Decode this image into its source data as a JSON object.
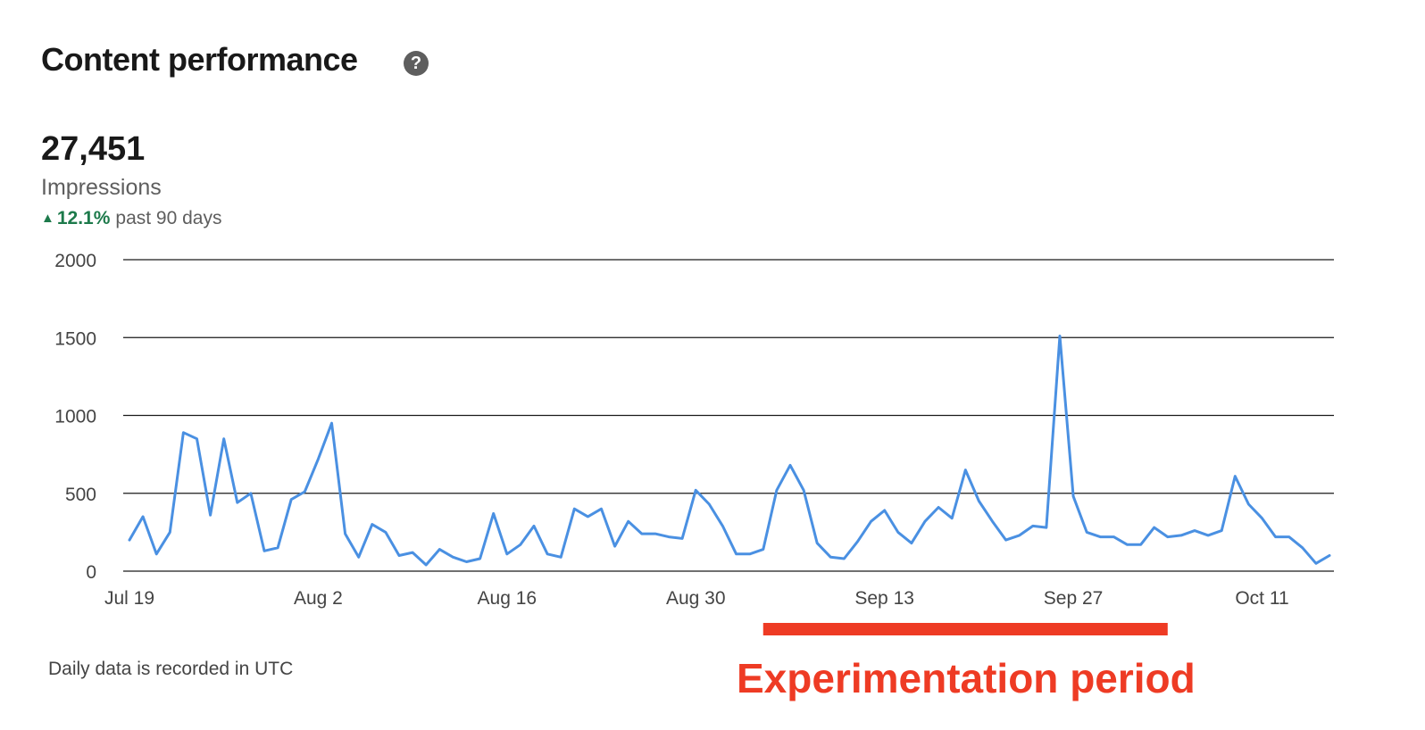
{
  "header": {
    "title": "Content performance",
    "help_icon": "?"
  },
  "summary": {
    "value": "27,451",
    "label": "Impressions",
    "change": "12.1%",
    "period": "past 90 days",
    "trend_icon": "▲"
  },
  "footer": {
    "note": "Daily data is recorded in UTC"
  },
  "annotation": {
    "label": "Experimentation period",
    "start": "2021-09-04",
    "end": "2021-10-04",
    "color": "#ee3b24"
  },
  "colors": {
    "line": "#4a90e2",
    "gridline": "#1a1a1a",
    "trend_up": "#1d7a4b",
    "annotation": "#ee3b24"
  },
  "chart_data": {
    "type": "line",
    "title": "",
    "xlabel": "",
    "ylabel": "",
    "ylim": [
      0,
      2000
    ],
    "yticks": [
      0,
      500,
      1000,
      1500,
      2000
    ],
    "x_tick_labels": [
      {
        "label": "Jul 19",
        "date": "2021-07-19"
      },
      {
        "label": "Aug 2",
        "date": "2021-08-02"
      },
      {
        "label": "Aug 16",
        "date": "2021-08-16"
      },
      {
        "label": "Aug 30",
        "date": "2021-08-30"
      },
      {
        "label": "Sep 13",
        "date": "2021-09-13"
      },
      {
        "label": "Sep 27",
        "date": "2021-09-27"
      },
      {
        "label": "Oct 11",
        "date": "2021-10-11"
      }
    ],
    "grid": true,
    "series": [
      {
        "name": "",
        "points": [
          [
            "2021-07-19",
            200
          ],
          [
            "2021-07-20",
            350
          ],
          [
            "2021-07-21",
            110
          ],
          [
            "2021-07-22",
            250
          ],
          [
            "2021-07-23",
            890
          ],
          [
            "2021-07-24",
            850
          ],
          [
            "2021-07-25",
            360
          ],
          [
            "2021-07-26",
            850
          ],
          [
            "2021-07-27",
            440
          ],
          [
            "2021-07-28",
            500
          ],
          [
            "2021-07-29",
            130
          ],
          [
            "2021-07-30",
            150
          ],
          [
            "2021-07-31",
            460
          ],
          [
            "2021-08-01",
            510
          ],
          [
            "2021-08-02",
            720
          ],
          [
            "2021-08-03",
            950
          ],
          [
            "2021-08-04",
            240
          ],
          [
            "2021-08-05",
            90
          ],
          [
            "2021-08-06",
            300
          ],
          [
            "2021-08-07",
            250
          ],
          [
            "2021-08-08",
            100
          ],
          [
            "2021-08-09",
            120
          ],
          [
            "2021-08-10",
            40
          ],
          [
            "2021-08-11",
            140
          ],
          [
            "2021-08-12",
            90
          ],
          [
            "2021-08-13",
            60
          ],
          [
            "2021-08-14",
            80
          ],
          [
            "2021-08-15",
            370
          ],
          [
            "2021-08-16",
            110
          ],
          [
            "2021-08-17",
            170
          ],
          [
            "2021-08-18",
            290
          ],
          [
            "2021-08-19",
            110
          ],
          [
            "2021-08-20",
            90
          ],
          [
            "2021-08-21",
            400
          ],
          [
            "2021-08-22",
            350
          ],
          [
            "2021-08-23",
            400
          ],
          [
            "2021-08-24",
            160
          ],
          [
            "2021-08-25",
            320
          ],
          [
            "2021-08-26",
            240
          ],
          [
            "2021-08-27",
            240
          ],
          [
            "2021-08-28",
            220
          ],
          [
            "2021-08-29",
            210
          ],
          [
            "2021-08-30",
            520
          ],
          [
            "2021-08-31",
            430
          ],
          [
            "2021-09-01",
            290
          ],
          [
            "2021-09-02",
            110
          ],
          [
            "2021-09-03",
            110
          ],
          [
            "2021-09-04",
            140
          ],
          [
            "2021-09-05",
            520
          ],
          [
            "2021-09-06",
            680
          ],
          [
            "2021-09-07",
            520
          ],
          [
            "2021-09-08",
            180
          ],
          [
            "2021-09-09",
            90
          ],
          [
            "2021-09-10",
            80
          ],
          [
            "2021-09-11",
            190
          ],
          [
            "2021-09-12",
            320
          ],
          [
            "2021-09-13",
            390
          ],
          [
            "2021-09-14",
            250
          ],
          [
            "2021-09-15",
            180
          ],
          [
            "2021-09-16",
            320
          ],
          [
            "2021-09-17",
            410
          ],
          [
            "2021-09-18",
            340
          ],
          [
            "2021-09-19",
            650
          ],
          [
            "2021-09-20",
            450
          ],
          [
            "2021-09-21",
            320
          ],
          [
            "2021-09-22",
            200
          ],
          [
            "2021-09-23",
            230
          ],
          [
            "2021-09-24",
            290
          ],
          [
            "2021-09-25",
            280
          ],
          [
            "2021-09-26",
            1510
          ],
          [
            "2021-09-27",
            480
          ],
          [
            "2021-09-28",
            250
          ],
          [
            "2021-09-29",
            220
          ],
          [
            "2021-09-30",
            220
          ],
          [
            "2021-10-01",
            170
          ],
          [
            "2021-10-02",
            170
          ],
          [
            "2021-10-03",
            280
          ],
          [
            "2021-10-04",
            220
          ],
          [
            "2021-10-05",
            230
          ],
          [
            "2021-10-06",
            260
          ],
          [
            "2021-10-07",
            230
          ],
          [
            "2021-10-08",
            260
          ],
          [
            "2021-10-09",
            610
          ],
          [
            "2021-10-10",
            430
          ],
          [
            "2021-10-11",
            340
          ],
          [
            "2021-10-12",
            220
          ],
          [
            "2021-10-13",
            220
          ],
          [
            "2021-10-14",
            150
          ],
          [
            "2021-10-15",
            50
          ],
          [
            "2021-10-16",
            100
          ]
        ]
      }
    ]
  }
}
